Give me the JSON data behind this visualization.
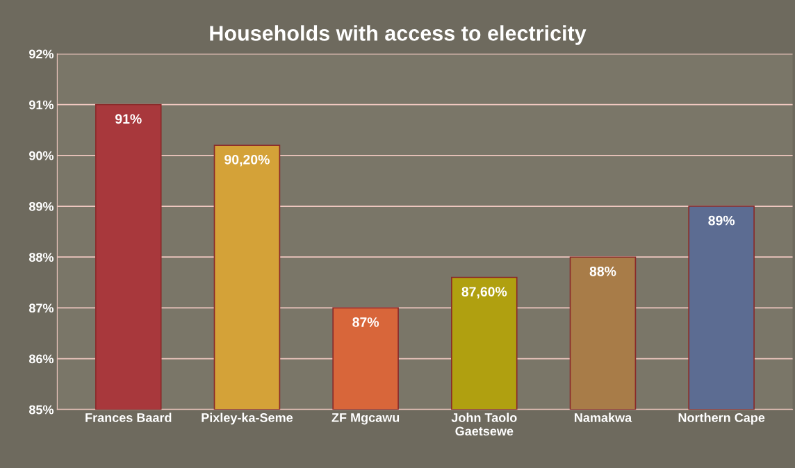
{
  "chart_data": {
    "type": "bar",
    "title": "Households with access to electricity",
    "categories": [
      "Frances Baard",
      "Pixley-ka-Seme",
      "ZF Mgcawu",
      "John Taolo\nGaetsewe",
      "Namakwa",
      "Northern Cape"
    ],
    "values": [
      91,
      90.2,
      87,
      87.6,
      88,
      89
    ],
    "colors": [
      "#a8383c",
      "#d4a238",
      "#d8663a",
      "#b0a010",
      "#a87c48",
      "#5c6c92"
    ],
    "value_labels": [
      "91%",
      "90,20%",
      "87%",
      "87,60%",
      "88%",
      "89%"
    ],
    "ylim": [
      85,
      92
    ],
    "yticks": [
      {
        "value": 85,
        "label": "85%"
      },
      {
        "value": 86,
        "label": "86%"
      },
      {
        "value": 87,
        "label": "87%"
      },
      {
        "value": 88,
        "label": "88%"
      },
      {
        "value": 89,
        "label": "89%"
      },
      {
        "value": 90,
        "label": "90%"
      },
      {
        "value": 91,
        "label": "91%"
      },
      {
        "value": 92,
        "label": "92%"
      }
    ],
    "grid": "y",
    "legend": false
  }
}
